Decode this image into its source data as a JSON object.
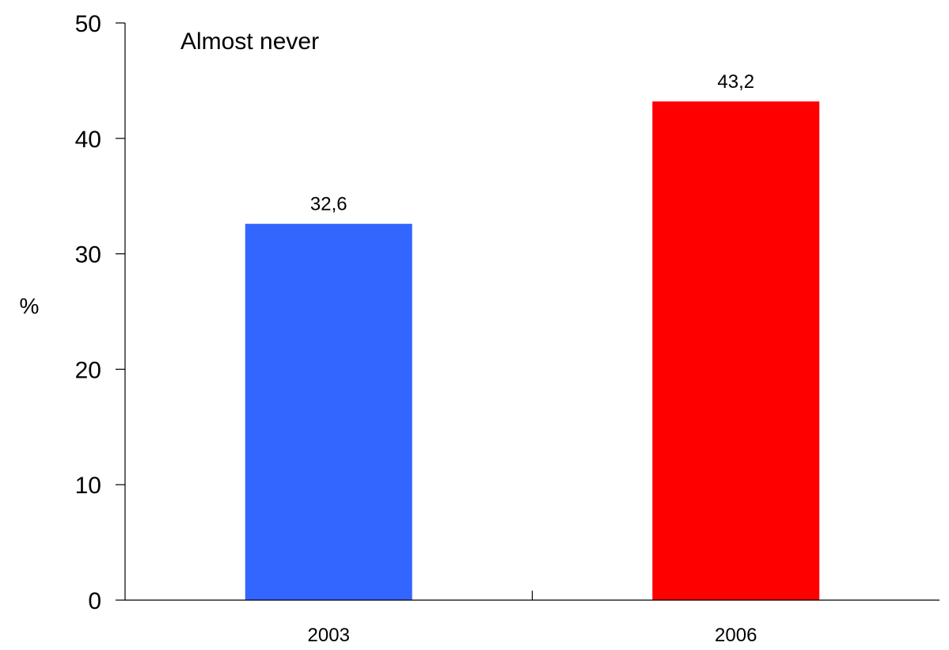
{
  "chart_data": {
    "type": "bar",
    "title": "",
    "annotation": "Almost never",
    "xlabel": "",
    "ylabel": "%",
    "categories": [
      "2003",
      "2006"
    ],
    "values": [
      32.6,
      43.2
    ],
    "value_labels": [
      "32,6",
      "43,2"
    ],
    "bar_colors": [
      "#3366FF",
      "#FF0000"
    ],
    "ylim": [
      0,
      50
    ],
    "yticks": [
      0,
      10,
      20,
      30,
      40,
      50
    ],
    "grid": false,
    "legend": "none"
  }
}
